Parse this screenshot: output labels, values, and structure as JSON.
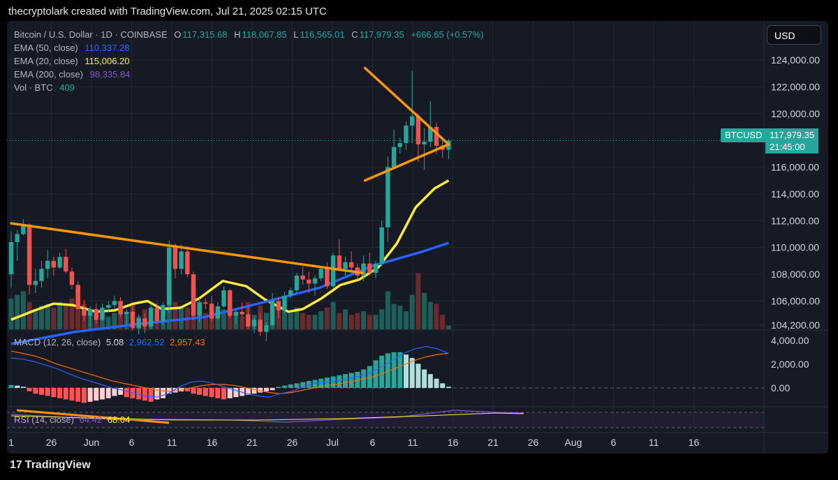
{
  "header": {
    "attribution": "thecryptolark created with TradingView.com, Jul 21, 2025 02:15 UTC"
  },
  "legend": {
    "symbol": "Bitcoin / U.S. Dollar · 1D · COINBASE",
    "o": "117,315.68",
    "h": "118,067.85",
    "l": "116,565.01",
    "c": "117,979.35",
    "change": "+666.65 (+0.57%)",
    "ema50_label": "EMA (50, close)",
    "ema50_value": "110,337.28",
    "ema20_label": "EMA (20, close)",
    "ema20_value": "115,006.20",
    "ema200_label": "EMA (200, close)",
    "ema200_value": "98,335.84",
    "vol_label": "Vol · BTC",
    "vol_value": "409"
  },
  "currency_button": "USD",
  "price_tag": {
    "symbol": "BTCUSD",
    "price": "117,979.35",
    "time": "21:45:00"
  },
  "macd_legend": {
    "label": "MACD (12, 26, close)",
    "v1": "5.08",
    "v2": "2,962.52",
    "v3": "2,957.43"
  },
  "rsi_legend": {
    "label": "RSI (14, close)",
    "v1": "64.42",
    "v2": "68.04"
  },
  "footer": {
    "brand": "TradingView",
    "logo": "17"
  },
  "colors": {
    "up": "#26a69a",
    "down": "#ef5350",
    "ema50": "#2962ff",
    "ema20": "#ffeb3b",
    "ema200": "#7e57c2",
    "trend": "#ff9800",
    "bg": "#161a25"
  },
  "chart_data": {
    "type": "candlestick",
    "y_axis_labels": [
      "124,000.00",
      "122,000.00",
      "120,000.00",
      "116,000.00",
      "114,000.00",
      "112,000.00",
      "110,000.00",
      "108,000.00",
      "106,000.00",
      "104,200.00"
    ],
    "y_axis_values": [
      124000,
      122000,
      120000,
      116000,
      114000,
      112000,
      110000,
      108000,
      106000,
      104200
    ],
    "macd_axis_labels": [
      "4,000.00",
      "2,000.00",
      "0.00"
    ],
    "x_axis_labels": [
      "1",
      "26",
      "Jun",
      "6",
      "11",
      "16",
      "21",
      "26",
      "Jul",
      "6",
      "11",
      "16",
      "21",
      "26",
      "Aug",
      "6",
      "11",
      "16"
    ],
    "candles": [
      [
        108000,
        111200,
        107000,
        110400
      ],
      [
        110400,
        111300,
        109000,
        111000
      ],
      [
        111000,
        112100,
        110900,
        111700
      ],
      [
        111700,
        111800,
        106500,
        107200
      ],
      [
        107200,
        108400,
        106600,
        107500
      ],
      [
        107500,
        109000,
        107000,
        108400
      ],
      [
        108400,
        109800,
        107700,
        109000
      ],
      [
        109000,
        109300,
        107900,
        108500
      ],
      [
        108500,
        109600,
        108400,
        109300
      ],
      [
        109300,
        109900,
        108100,
        108200
      ],
      [
        108200,
        108500,
        106900,
        107200
      ],
      [
        107200,
        107500,
        105400,
        105400
      ],
      [
        105400,
        106100,
        104500,
        104900
      ],
      [
        104900,
        105600,
        104100,
        105400
      ],
      [
        105400,
        105800,
        104300,
        104600
      ],
      [
        104600,
        105800,
        104500,
        105500
      ],
      [
        105500,
        106000,
        105200,
        105700
      ],
      [
        105700,
        106400,
        105400,
        106000
      ],
      [
        106000,
        106300,
        104800,
        105000
      ],
      [
        105000,
        105400,
        104200,
        105200
      ],
      [
        105200,
        105600,
        103800,
        104000
      ],
      [
        104000,
        105000,
        103500,
        104700
      ],
      [
        104700,
        105100,
        103600,
        104100
      ],
      [
        104100,
        105800,
        103900,
        105500
      ],
      [
        105500,
        105900,
        104300,
        104500
      ],
      [
        104500,
        105900,
        104200,
        105700
      ],
      [
        105700,
        110500,
        105100,
        110000
      ],
      [
        110000,
        110300,
        107700,
        108400
      ],
      [
        108400,
        110200,
        108000,
        109700
      ],
      [
        109700,
        110100,
        107800,
        108000
      ],
      [
        108000,
        108200,
        104600,
        104900
      ],
      [
        104900,
        106200,
        104400,
        105900
      ],
      [
        105900,
        106200,
        105400,
        105800
      ],
      [
        105800,
        106400,
        104500,
        104700
      ],
      [
        104700,
        105900,
        104600,
        105600
      ],
      [
        105600,
        107100,
        105500,
        106800
      ],
      [
        106800,
        106900,
        104700,
        104900
      ],
      [
        104900,
        105400,
        104300,
        105200
      ],
      [
        105200,
        105900,
        104800,
        105000
      ],
      [
        105000,
        105700,
        103900,
        104100
      ],
      [
        104100,
        104800,
        103600,
        104600
      ],
      [
        104600,
        105100,
        103400,
        103700
      ],
      [
        103700,
        104400,
        103000,
        104200
      ],
      [
        104200,
        106600,
        104100,
        106000
      ],
      [
        106000,
        106300,
        104700,
        105300
      ],
      [
        105300,
        106700,
        105100,
        106400
      ],
      [
        106400,
        107000,
        106200,
        106800
      ],
      [
        106800,
        108100,
        106600,
        107900
      ],
      [
        107900,
        108600,
        107200,
        107600
      ],
      [
        107600,
        108200,
        106600,
        107300
      ],
      [
        107300,
        107900,
        106400,
        107700
      ],
      [
        107700,
        108600,
        107500,
        108400
      ],
      [
        108400,
        108900,
        106900,
        107100
      ],
      [
        107100,
        109600,
        107000,
        109400
      ],
      [
        109400,
        110600,
        108200,
        108400
      ],
      [
        108400,
        109300,
        107900,
        108900
      ],
      [
        108900,
        109700,
        108200,
        108500
      ],
      [
        108500,
        108800,
        107600,
        107900
      ],
      [
        107900,
        109400,
        107500,
        108800
      ],
      [
        108800,
        109600,
        107900,
        108100
      ],
      [
        108100,
        109000,
        107700,
        108800
      ],
      [
        108800,
        112000,
        108600,
        111500
      ],
      [
        111500,
        116800,
        110400,
        116000
      ],
      [
        116000,
        118800,
        115900,
        117500
      ],
      [
        117500,
        118200,
        117000,
        117800
      ],
      [
        117800,
        119400,
        117300,
        119100
      ],
      [
        119100,
        123200,
        117800,
        119800
      ],
      [
        119800,
        120000,
        116400,
        117700
      ],
      [
        117700,
        118900,
        115800,
        117900
      ],
      [
        117900,
        120900,
        117500,
        119000
      ],
      [
        119000,
        119300,
        117000,
        117600
      ],
      [
        117600,
        118100,
        116700,
        117300
      ],
      [
        117300,
        118100,
        116600,
        117980
      ]
    ],
    "ema20": [
      [
        104600,
        0
      ],
      [
        105300,
        10
      ],
      [
        105800,
        18
      ],
      [
        105700,
        26
      ],
      [
        105200,
        36
      ],
      [
        105300,
        44
      ],
      [
        105800,
        52
      ],
      [
        106000,
        58
      ],
      [
        105400,
        64
      ],
      [
        105500,
        72
      ],
      [
        106200,
        80
      ],
      [
        107500,
        90
      ],
      [
        107100,
        100
      ],
      [
        106100,
        108
      ],
      [
        105200,
        118
      ],
      [
        105400,
        124
      ],
      [
        106200,
        132
      ],
      [
        107200,
        140
      ],
      [
        107600,
        148
      ],
      [
        108500,
        156
      ],
      [
        110300,
        164
      ],
      [
        113000,
        172
      ],
      [
        114400,
        180
      ],
      [
        115000,
        186
      ]
    ],
    "ema50": [
      [
        102800,
        0
      ],
      [
        103700,
        20
      ],
      [
        104300,
        40
      ],
      [
        104800,
        60
      ],
      [
        106000,
        80
      ],
      [
        107000,
        96
      ],
      [
        108600,
        112
      ],
      [
        109700,
        128
      ],
      [
        110340,
        136
      ]
    ],
    "trendlines": [
      {
        "name": "descending",
        "from": [
          111800,
          0
        ],
        "to": [
          108100,
          147
        ]
      },
      {
        "name": "wedge-upper",
        "from": [
          123400,
          148
        ],
        "to": [
          117700,
          183
        ]
      },
      {
        "name": "wedge-lower",
        "from": [
          115000,
          148
        ],
        "to": [
          117700,
          183
        ]
      }
    ],
    "volume": [
      0.34,
      0.38,
      0.42,
      0.3,
      0.22,
      0.26,
      0.28,
      0.24,
      0.3,
      0.26,
      0.34,
      0.44,
      0.28,
      0.22,
      0.16,
      0.2,
      0.14,
      0.18,
      0.22,
      0.16,
      0.28,
      0.14,
      0.22,
      0.18,
      0.16,
      0.2,
      0.54,
      0.3,
      0.26,
      0.24,
      0.52,
      0.3,
      0.18,
      0.22,
      0.16,
      0.22,
      0.3,
      0.16,
      0.14,
      0.3,
      0.16,
      0.26,
      0.18,
      0.26,
      0.22,
      0.22,
      0.18,
      0.24,
      0.18,
      0.16,
      0.16,
      0.2,
      0.24,
      0.3,
      0.18,
      0.22,
      0.16,
      0.18,
      0.2,
      0.16,
      0.16,
      0.22,
      0.42,
      0.28,
      0.26,
      0.2,
      0.38,
      0.62,
      0.4,
      0.3,
      0.28,
      0.16,
      0.04
    ],
    "macd_hist": [
      0.25,
      0.2,
      0.1,
      -0.3,
      -0.5,
      -0.6,
      -0.7,
      -0.8,
      -0.9,
      -1.0,
      -1.1,
      -1.2,
      -1.3,
      -1.2,
      -1.1,
      -1.0,
      -0.9,
      -0.7,
      -0.6,
      -0.8,
      -0.9,
      -1.0,
      -1.1,
      -1.2,
      -1.0,
      -0.9,
      -0.5,
      -0.4,
      -0.3,
      -0.3,
      -0.5,
      -0.6,
      -0.7,
      -0.8,
      -0.9,
      -1.0,
      -0.9,
      -0.8,
      -0.7,
      -0.6,
      -0.5,
      -0.4,
      -0.3,
      -0.2,
      0.1,
      0.2,
      0.3,
      0.4,
      0.5,
      0.6,
      0.7,
      0.8,
      0.9,
      1.0,
      1.1,
      1.2,
      1.3,
      1.4,
      1.6,
      1.9,
      2.4,
      2.8,
      3.0,
      3.1,
      3.1,
      2.9,
      2.6,
      2.1,
      1.6,
      1.2,
      0.8,
      0.4,
      0.1
    ],
    "macd_line": [
      2.6,
      2.5,
      2.3,
      2.0,
      1.7,
      1.3,
      0.9,
      0.6,
      0.3,
      0.0,
      -0.2,
      -0.5,
      -0.7,
      -0.8,
      -0.5,
      0.1,
      0.5,
      0.6,
      0.4,
      0.1,
      -0.2,
      -0.5,
      -0.7,
      -0.8,
      -0.5,
      -0.3,
      0.1,
      0.4,
      0.5,
      0.6,
      0.8,
      1.0,
      1.3,
      1.8,
      2.4,
      3.0,
      3.4,
      3.6,
      3.4,
      3.0
    ],
    "signal_line": [
      3.2,
      3.0,
      2.8,
      2.5,
      2.1,
      1.8,
      1.5,
      1.2,
      0.9,
      0.6,
      0.4,
      0.2,
      0.0,
      -0.2,
      -0.3,
      -0.2,
      0.0,
      0.2,
      0.3,
      0.3,
      0.2,
      0.0,
      -0.2,
      -0.4,
      -0.5,
      -0.4,
      -0.2,
      0.0,
      0.2,
      0.3,
      0.5,
      0.7,
      0.9,
      1.2,
      1.6,
      2.0,
      2.4,
      2.7,
      2.9,
      3.0
    ]
  }
}
